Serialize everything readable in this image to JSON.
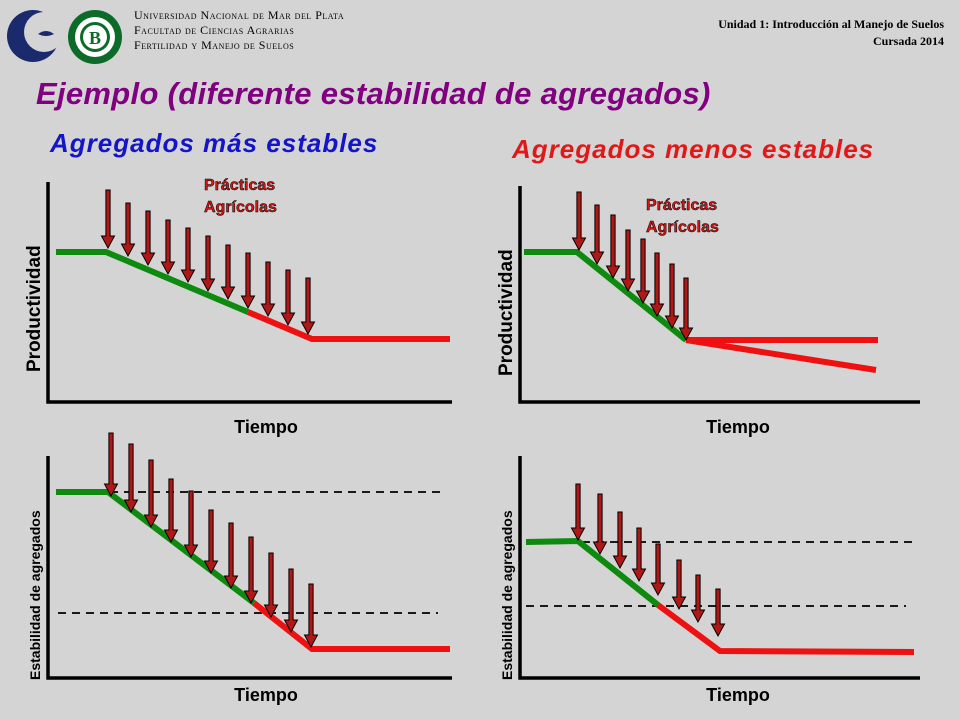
{
  "header": {
    "institution_lines": [
      "Universidad Nacional de Mar del Plata",
      "Facultad de Ciencias Agrarias",
      "Fertilidad y Manejo de Suelos"
    ],
    "unit": "Unidad 1: Introducción al Manejo de Suelos",
    "course": "Cursada 2014"
  },
  "logos": {
    "left_icon": "university-crescent-logo",
    "right_icon": "faculty-seal-logo",
    "seal_letter": "B"
  },
  "title": "Ejemplo (diferente estabilidad de agregados)",
  "left_subtitle": "Agregados más estables",
  "right_subtitle": "Agregados menos estables",
  "panels": {
    "top_left": {
      "ylabel": "Productividad",
      "xlabel": "Tiempo",
      "practice_line1": "Prácticas",
      "practice_line2": "Agrícolas"
    },
    "top_right": {
      "ylabel": "Productividad",
      "xlabel": "Tiempo",
      "practice_line1": "Prácticas",
      "practice_line2": "Agrícolas"
    },
    "bottom_left": {
      "ylabel": "Estabilidad de agregados",
      "xlabel": "Tiempo"
    },
    "bottom_right": {
      "ylabel": "Estabilidad de agregados",
      "xlabel": "Tiempo"
    }
  },
  "colors": {
    "title": "#800080",
    "stable": "#1515c8",
    "unstable": "#e01818",
    "green_segment": "#0e8a0e",
    "red_segment": "#ee1111",
    "arrow_fill": "#b01818"
  }
}
